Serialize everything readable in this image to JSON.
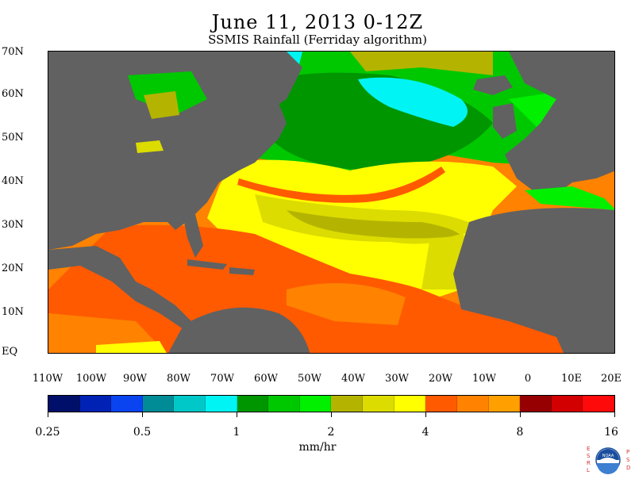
{
  "title": "June 11, 2013 0-12Z",
  "subtitle": "SSMIS Rainfall (Ferriday algorithm)",
  "lat_labels": [
    "70N",
    "60N",
    "50N",
    "40N",
    "30N",
    "20N",
    "10N",
    "EQ"
  ],
  "lon_labels": [
    "110W",
    "100W",
    "90W",
    "80W",
    "70W",
    "60W",
    "50W",
    "40W",
    "30W",
    "20W",
    "10W",
    "0",
    "10E",
    "20E"
  ],
  "colorbar": {
    "colors": [
      "#00106a",
      "#0022b4",
      "#0a44f0",
      "#008c96",
      "#00c8c8",
      "#00f4f4",
      "#009600",
      "#00c800",
      "#00f000",
      "#b4b400",
      "#dcdc00",
      "#ffff00",
      "#ff5a00",
      "#ff8200",
      "#ffa000",
      "#960000",
      "#d20000",
      "#ff0a0a"
    ],
    "tick_labels": [
      "0.25",
      "0.5",
      "1",
      "2",
      "4",
      "8",
      "16"
    ],
    "units": "mm/hr"
  },
  "logo": {
    "text": "NOAA",
    "left_letters": [
      "E",
      "S",
      "R",
      "L"
    ],
    "right_letters": [
      "P",
      "S",
      "D"
    ]
  },
  "legend_colors": {
    "land": "#616161",
    "green": "#00c800",
    "dark_green": "#009600",
    "light_green": "#00f000",
    "olive": "#b4b400",
    "yellow_olive": "#dcdc00",
    "yellow": "#ffff00",
    "orange_red": "#ff5a00",
    "orange": "#ff8200",
    "light_orange": "#ffa000",
    "cyan": "#00f4f4",
    "red": "#ff0a0a"
  }
}
